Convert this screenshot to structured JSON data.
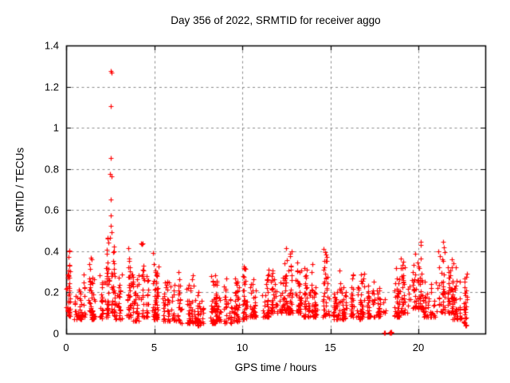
{
  "chart_data": {
    "type": "scatter",
    "title": "Day 356 of 2022, SRMTID for receiver aggo",
    "xlabel": "GPS time / hours",
    "ylabel": "SRMTID / TECUs",
    "series_name": "SRMTID",
    "xlim": [
      0,
      23.8
    ],
    "ylim": [
      0,
      1.4
    ],
    "xticks": {
      "values": [
        0,
        5,
        10,
        15,
        20
      ],
      "labels": [
        "0",
        "5",
        "10",
        "15",
        "20"
      ]
    },
    "yticks": {
      "values": [
        0,
        0.2,
        0.4,
        0.6,
        0.8,
        1.0,
        1.2,
        1.4
      ],
      "labels": [
        "0",
        "0.2",
        "0.4",
        "0.6",
        "0.8",
        "1",
        "1.2",
        "1.4"
      ]
    },
    "grid": true,
    "legend": "none",
    "marker": {
      "shape": "plus",
      "size": 7,
      "color": "#ff0000"
    },
    "colors": {
      "background": "#ffffff",
      "axis": "#000000",
      "grid": "#8c8c8c",
      "marker": "#ff0000"
    },
    "outlier_points": [
      [
        2.52,
        1.275
      ],
      [
        2.58,
        1.27
      ],
      [
        2.54,
        1.105
      ],
      [
        2.55,
        0.853
      ],
      [
        2.51,
        0.775
      ],
      [
        2.56,
        0.763
      ],
      [
        2.55,
        0.652
      ],
      [
        2.53,
        0.573
      ],
      [
        2.54,
        0.522
      ],
      [
        2.56,
        0.493
      ],
      [
        2.51,
        0.466
      ]
    ],
    "baseline_points": [
      [
        18.04,
        0.004
      ],
      [
        18.09,
        0.004
      ],
      [
        18.37,
        0.005
      ],
      [
        18.4,
        0.003
      ],
      [
        18.42,
        0.006
      ],
      [
        18.44,
        0.004
      ],
      [
        18.46,
        0.006
      ],
      [
        18.41,
        0.008
      ],
      [
        18.43,
        0.002
      ]
    ],
    "band_segments_format": "[x_start_hours, x_end_hours, point_count, y_min_TECU, y_max_TECU]",
    "band_segments": [
      [
        0.0,
        0.5,
        42,
        0.08,
        0.46
      ],
      [
        0.5,
        1.0,
        36,
        0.07,
        0.26
      ],
      [
        1.0,
        1.5,
        40,
        0.08,
        0.37
      ],
      [
        1.5,
        2.0,
        36,
        0.07,
        0.3
      ],
      [
        2.0,
        2.35,
        28,
        0.08,
        0.33
      ],
      [
        2.35,
        2.75,
        52,
        0.1,
        0.5
      ],
      [
        2.75,
        3.25,
        38,
        0.07,
        0.3
      ],
      [
        3.25,
        3.75,
        38,
        0.08,
        0.42
      ],
      [
        3.75,
        4.25,
        38,
        0.06,
        0.34
      ],
      [
        4.25,
        5.0,
        52,
        0.08,
        0.44
      ],
      [
        5.0,
        5.5,
        38,
        0.07,
        0.33
      ],
      [
        5.5,
        6.0,
        34,
        0.06,
        0.26
      ],
      [
        6.0,
        6.5,
        36,
        0.06,
        0.3
      ],
      [
        6.5,
        7.0,
        32,
        0.05,
        0.24
      ],
      [
        7.0,
        7.5,
        34,
        0.05,
        0.3
      ],
      [
        7.5,
        8.0,
        32,
        0.04,
        0.24
      ],
      [
        8.0,
        8.5,
        36,
        0.05,
        0.3
      ],
      [
        8.5,
        9.0,
        36,
        0.06,
        0.3
      ],
      [
        9.0,
        9.5,
        34,
        0.05,
        0.27
      ],
      [
        9.5,
        10.0,
        36,
        0.06,
        0.32
      ],
      [
        10.0,
        10.5,
        36,
        0.07,
        0.33
      ],
      [
        10.5,
        11.0,
        36,
        0.08,
        0.33
      ],
      [
        11.0,
        11.5,
        38,
        0.08,
        0.35
      ],
      [
        11.5,
        12.0,
        38,
        0.1,
        0.35
      ],
      [
        12.0,
        12.5,
        42,
        0.1,
        0.43
      ],
      [
        12.5,
        13.0,
        42,
        0.1,
        0.4
      ],
      [
        13.0,
        13.5,
        40,
        0.1,
        0.4
      ],
      [
        13.5,
        14.0,
        38,
        0.08,
        0.35
      ],
      [
        14.0,
        14.5,
        38,
        0.08,
        0.4
      ],
      [
        14.5,
        15.1,
        40,
        0.08,
        0.43
      ],
      [
        15.1,
        15.6,
        36,
        0.07,
        0.33
      ],
      [
        15.6,
        16.1,
        34,
        0.07,
        0.3
      ],
      [
        16.1,
        16.6,
        36,
        0.08,
        0.35
      ],
      [
        16.6,
        17.1,
        34,
        0.07,
        0.3
      ],
      [
        17.1,
        17.6,
        36,
        0.08,
        0.33
      ],
      [
        17.6,
        17.95,
        26,
        0.08,
        0.28
      ],
      [
        17.95,
        18.3,
        6,
        0.1,
        0.22
      ],
      [
        18.3,
        19.0,
        40,
        0.08,
        0.35
      ],
      [
        19.0,
        19.5,
        40,
        0.1,
        0.4
      ],
      [
        19.5,
        20.25,
        55,
        0.12,
        0.49
      ],
      [
        20.25,
        21.0,
        42,
        0.08,
        0.4
      ],
      [
        21.0,
        21.5,
        40,
        0.1,
        0.47
      ],
      [
        21.5,
        22.0,
        42,
        0.1,
        0.38
      ],
      [
        22.0,
        22.5,
        40,
        0.07,
        0.35
      ],
      [
        22.5,
        22.95,
        32,
        0.04,
        0.3
      ]
    ],
    "x_data_max": 22.95,
    "seed": 356
  }
}
